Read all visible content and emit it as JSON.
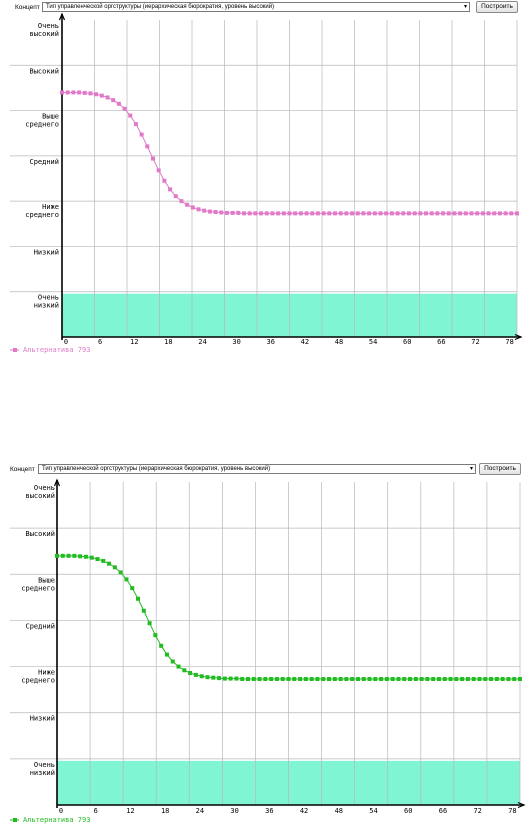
{
  "panels": [
    {
      "concept_label": "Концепт",
      "concept_value": "Тип управленческой оргструктуры (иерархическая бюрократия, уровень высокий)",
      "build_button": "Построить"
    },
    {
      "concept_label": "Концепт",
      "concept_value": "Тип управленческой оргструктуры (иерархическая бюрократия, уровень высокий)",
      "build_button": "Построить"
    }
  ],
  "colors": {
    "series1": "#e07ac8",
    "series2": "#22bb22",
    "band": "#7ff5d3",
    "grid": "#b8b8b8",
    "axis": "#000000"
  },
  "chart_data": [
    {
      "type": "line",
      "levels": [
        "Очень высокий",
        "Высокий",
        "Выше среднего",
        "Средний",
        "Ниже среднего",
        "Низкий",
        "Очень низкий"
      ],
      "x_ticks": [
        0,
        6,
        12,
        18,
        24,
        30,
        36,
        42,
        48,
        54,
        60,
        66,
        72,
        78
      ],
      "xlim": [
        0,
        80
      ],
      "ylim": [
        0,
        7
      ],
      "highlight_band": "Очень низкий",
      "grid": true,
      "legend_position": "bottom-left",
      "series": [
        {
          "name": "Альтернатива 793",
          "color_key": "series1",
          "x": [
            0,
            1,
            2,
            3,
            4,
            5,
            6,
            7,
            8,
            9,
            10,
            11,
            12,
            13,
            14,
            15,
            16,
            17,
            18,
            19,
            20,
            21,
            22,
            23,
            24,
            25,
            26,
            27,
            28,
            29,
            30,
            31,
            32,
            33,
            34,
            35,
            36,
            37,
            38,
            39,
            40,
            41,
            42,
            43,
            44,
            45,
            46,
            47,
            48,
            49,
            50,
            51,
            52,
            53,
            54,
            55,
            56,
            57,
            58,
            59,
            60,
            61,
            62,
            63,
            64,
            65,
            66,
            67,
            68,
            69,
            70,
            71,
            72,
            73,
            74,
            75,
            76,
            77,
            78,
            79,
            80
          ],
          "y": [
            5.4,
            5.4,
            5.4,
            5.4,
            5.39,
            5.38,
            5.36,
            5.33,
            5.29,
            5.23,
            5.15,
            5.04,
            4.89,
            4.7,
            4.47,
            4.21,
            3.94,
            3.68,
            3.45,
            3.26,
            3.11,
            3.0,
            2.92,
            2.86,
            2.82,
            2.79,
            2.77,
            2.76,
            2.75,
            2.74,
            2.74,
            2.74,
            2.73,
            2.73,
            2.73,
            2.73,
            2.73,
            2.73,
            2.73,
            2.73,
            2.73,
            2.73,
            2.73,
            2.73,
            2.73,
            2.73,
            2.73,
            2.73,
            2.73,
            2.73,
            2.73,
            2.73,
            2.73,
            2.73,
            2.73,
            2.73,
            2.73,
            2.73,
            2.73,
            2.73,
            2.73,
            2.73,
            2.73,
            2.73,
            2.73,
            2.73,
            2.73,
            2.73,
            2.73,
            2.73,
            2.73,
            2.73,
            2.73,
            2.73,
            2.73,
            2.73,
            2.73,
            2.73,
            2.73,
            2.73,
            2.73
          ]
        }
      ]
    },
    {
      "type": "line",
      "levels": [
        "Очень высокий",
        "Высокий",
        "Выше среднего",
        "Средний",
        "Ниже среднего",
        "Низкий",
        "Очень низкий"
      ],
      "x_ticks": [
        0,
        6,
        12,
        18,
        24,
        30,
        36,
        42,
        48,
        54,
        60,
        66,
        72,
        78
      ],
      "xlim": [
        0,
        80
      ],
      "ylim": [
        0,
        7
      ],
      "highlight_band": "Очень низкий",
      "grid": true,
      "legend_position": "bottom-left",
      "series": [
        {
          "name": "Альтернатива 793",
          "color_key": "series2",
          "x": [
            0,
            1,
            2,
            3,
            4,
            5,
            6,
            7,
            8,
            9,
            10,
            11,
            12,
            13,
            14,
            15,
            16,
            17,
            18,
            19,
            20,
            21,
            22,
            23,
            24,
            25,
            26,
            27,
            28,
            29,
            30,
            31,
            32,
            33,
            34,
            35,
            36,
            37,
            38,
            39,
            40,
            41,
            42,
            43,
            44,
            45,
            46,
            47,
            48,
            49,
            50,
            51,
            52,
            53,
            54,
            55,
            56,
            57,
            58,
            59,
            60,
            61,
            62,
            63,
            64,
            65,
            66,
            67,
            68,
            69,
            70,
            71,
            72,
            73,
            74,
            75,
            76,
            77,
            78,
            79,
            80
          ],
          "y": [
            5.4,
            5.4,
            5.4,
            5.4,
            5.39,
            5.38,
            5.36,
            5.33,
            5.29,
            5.23,
            5.15,
            5.04,
            4.89,
            4.7,
            4.47,
            4.21,
            3.94,
            3.68,
            3.45,
            3.26,
            3.11,
            3.0,
            2.92,
            2.86,
            2.82,
            2.79,
            2.77,
            2.76,
            2.75,
            2.74,
            2.74,
            2.74,
            2.73,
            2.73,
            2.73,
            2.73,
            2.73,
            2.73,
            2.73,
            2.73,
            2.73,
            2.73,
            2.73,
            2.73,
            2.73,
            2.73,
            2.73,
            2.73,
            2.73,
            2.73,
            2.73,
            2.73,
            2.73,
            2.73,
            2.73,
            2.73,
            2.73,
            2.73,
            2.73,
            2.73,
            2.73,
            2.73,
            2.73,
            2.73,
            2.73,
            2.73,
            2.73,
            2.73,
            2.73,
            2.73,
            2.73,
            2.73,
            2.73,
            2.73,
            2.73,
            2.73,
            2.73,
            2.73,
            2.73,
            2.73,
            2.73
          ]
        }
      ]
    }
  ]
}
